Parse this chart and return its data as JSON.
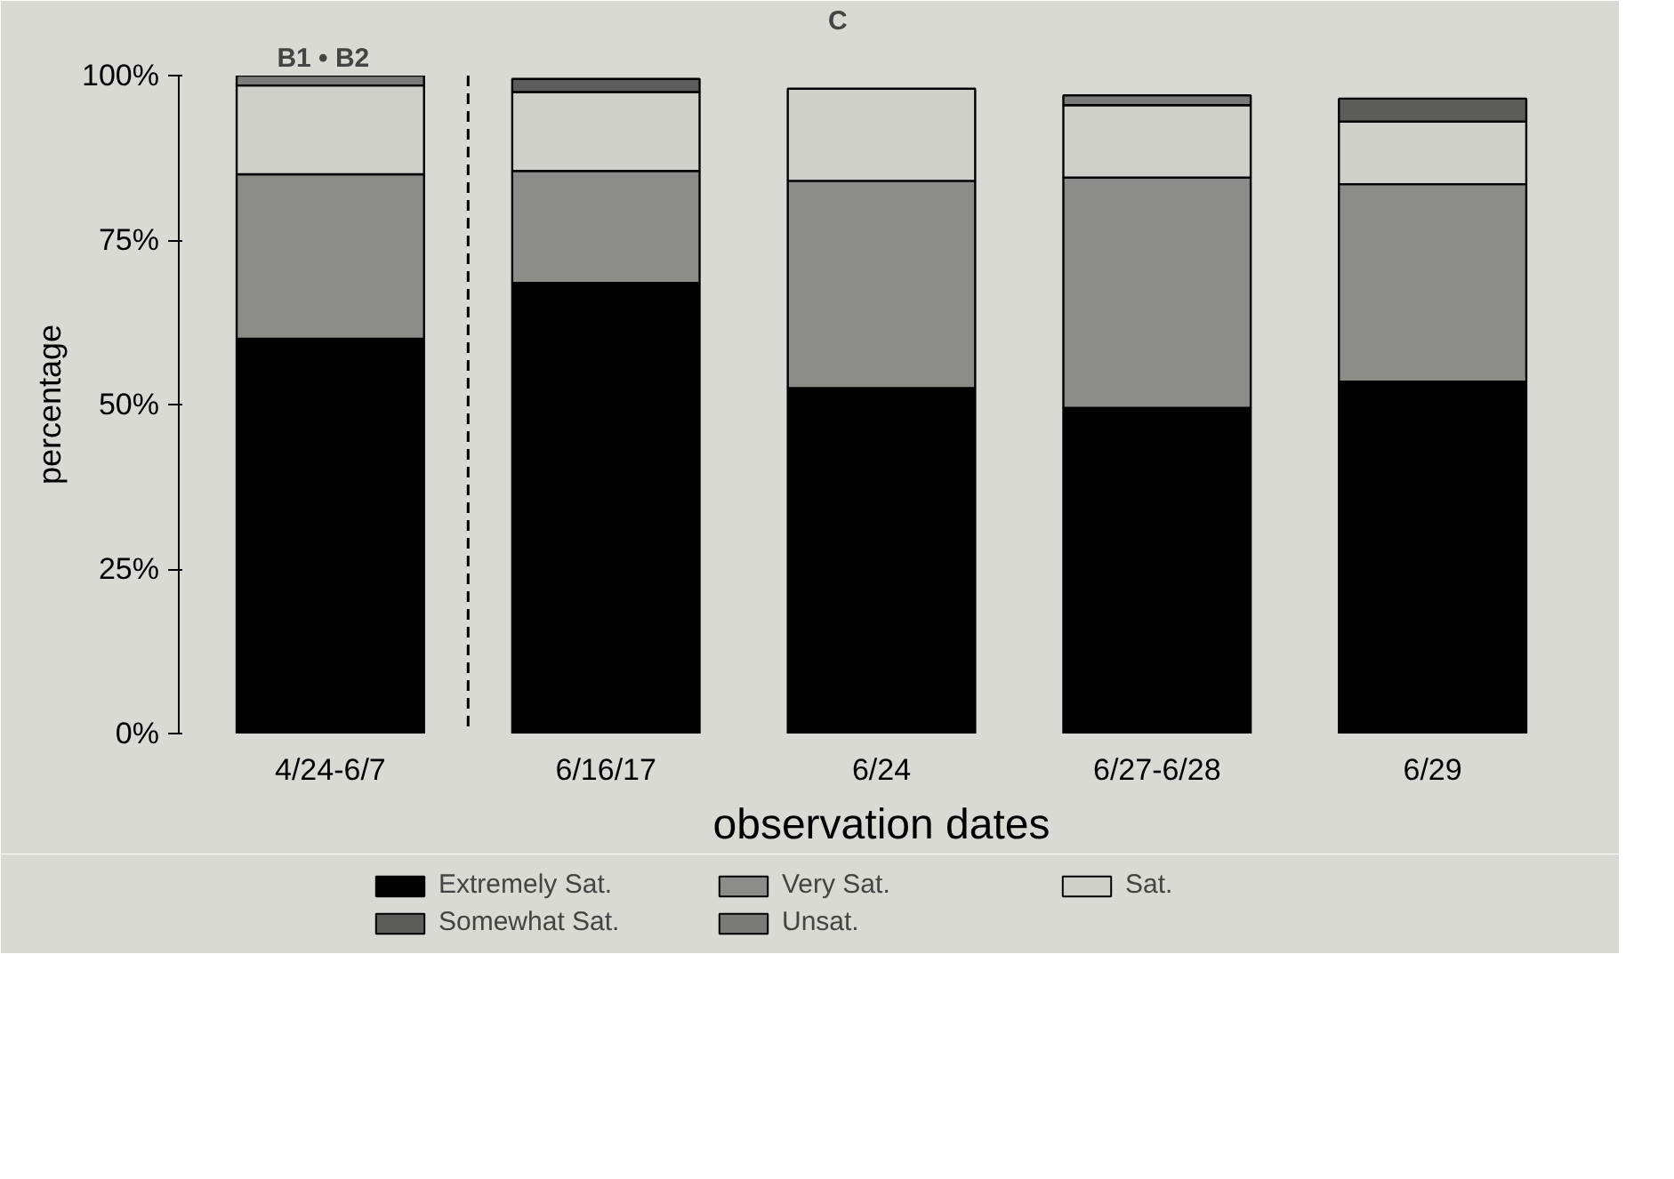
{
  "chart_data": {
    "type": "bar",
    "stacked": true,
    "xlabel": "observation dates",
    "ylabel": "percentage",
    "categories": [
      "4/24-6/7",
      "6/16/17",
      "6/24",
      "6/27-6/28",
      "6/29"
    ],
    "series": [
      {
        "name": "Extremely Sat.",
        "color": "#000000",
        "values": [
          60,
          68.5,
          52.5,
          49.5,
          53.5
        ]
      },
      {
        "name": "Very Sat.",
        "color": "#8c8c88",
        "values": [
          25,
          17,
          31.5,
          35,
          30
        ]
      },
      {
        "name": "Sat.",
        "color": "#cfd0ca",
        "values": [
          13.5,
          12,
          14,
          11,
          9.5
        ]
      },
      {
        "name": "Somewhat Sat.",
        "color": "#5c5c58",
        "values": [
          0,
          2,
          0,
          0,
          3.5
        ]
      },
      {
        "name": "Unsat.",
        "color": "#7a7a76",
        "values": [
          1.5,
          0,
          0,
          1.5,
          0
        ]
      }
    ],
    "ylim": [
      0,
      100
    ],
    "yticks": [
      {
        "value": 0,
        "label": "0%"
      },
      {
        "value": 25,
        "label": "25%"
      },
      {
        "value": 50,
        "label": "50%"
      },
      {
        "value": 75,
        "label": "75%"
      },
      {
        "value": 100,
        "label": "100%"
      }
    ],
    "grid": false,
    "legend": "bottom",
    "annotations": [
      "B1 • B2",
      "C"
    ]
  }
}
